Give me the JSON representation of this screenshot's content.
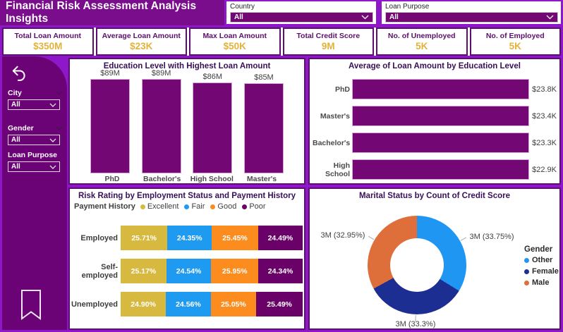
{
  "header": {
    "title": "Financial Risk Assessment Analysis Insights",
    "filters": [
      {
        "label": "Country",
        "value": "All"
      },
      {
        "label": "Loan Purpose",
        "value": "All"
      }
    ]
  },
  "kpis": [
    {
      "label": "Total Loan Amount",
      "value": "$350M"
    },
    {
      "label": "Average Loan Amount",
      "value": "$23K"
    },
    {
      "label": "Max Loan Amount",
      "value": "$50K"
    },
    {
      "label": "Total Credit Score",
      "value": "9M"
    },
    {
      "label": "No. of Unemployed",
      "value": "5K"
    },
    {
      "label": "No. of Employed",
      "value": "5K"
    }
  ],
  "sidebar": {
    "icons": [
      "back-arrow-icon",
      "bookmark-icon"
    ],
    "filters": [
      {
        "label": "City",
        "value": "All",
        "has_header_chevron": true
      },
      {
        "label": "Gender",
        "value": "All",
        "has_header_chevron": true
      },
      {
        "label": "Loan Purpose",
        "value": "All",
        "has_header_chevron": false
      }
    ]
  },
  "colors": {
    "background_violet": "#8D17C9",
    "titlebar_purple": "#7A0D8C",
    "sidebar_purple": "#6B0377",
    "accent_bar_purple": "#730874",
    "kpi_value_gold": "#E3B23A"
  },
  "chart_data": [
    {
      "type": "bar",
      "title": "Education Level with Highest Loan Amount",
      "categories": [
        "PhD",
        "Bachelor's",
        "High School",
        "Master's"
      ],
      "values": [
        89,
        89,
        86,
        85
      ],
      "labels": [
        "$89M",
        "$89M",
        "$86M",
        "$85M"
      ],
      "unit": "$M",
      "bar_color": "#730874",
      "ylim": [
        0,
        89
      ]
    },
    {
      "type": "bar-horizontal",
      "title": "Average of Loan Amount by Education Level",
      "categories": [
        "PhD",
        "Master's",
        "Bachelor's",
        "High School"
      ],
      "values": [
        23.8,
        23.4,
        23.3,
        22.9
      ],
      "labels": [
        "$23.8K",
        "$23.4K",
        "$23.3K",
        "$22.9K"
      ],
      "unit": "$K",
      "bar_color": "#730874",
      "xlim": [
        0,
        23.8
      ]
    },
    {
      "type": "bar-stacked",
      "title": "Risk Rating by Employment Status and Payment History",
      "legend_title": "Payment History",
      "legend_position": "top",
      "categories": [
        "Employed",
        "Self-employed",
        "Unemployed"
      ],
      "series": [
        {
          "name": "Excellent",
          "color": "#D8B93F",
          "values": [
            25.71,
            25.17,
            24.9
          ]
        },
        {
          "name": "Fair",
          "color": "#1E9BF0",
          "values": [
            24.35,
            24.54,
            24.56
          ]
        },
        {
          "name": "Good",
          "color": "#FC8C1E",
          "values": [
            25.45,
            25.95,
            25.05
          ]
        },
        {
          "name": "Poor",
          "color": "#690168",
          "values": [
            24.49,
            24.34,
            25.49
          ]
        }
      ],
      "value_suffix": "%"
    },
    {
      "type": "pie",
      "title": "Marital Status by Count of Credit Score",
      "legend_title": "Gender",
      "legend_position": "right",
      "slices": [
        {
          "name": "Other",
          "color": "#2096F3",
          "value_label": "3M",
          "pct": 33.75,
          "label": "3M (33.75%)"
        },
        {
          "name": "Female",
          "color": "#1C2E92",
          "value_label": "3M",
          "pct": 33.3,
          "label": "3M (33.3%)"
        },
        {
          "name": "Male",
          "color": "#DE6F3A",
          "value_label": "3M",
          "pct": 32.95,
          "label": "3M (32.95%)"
        }
      ],
      "donut_hole": true
    }
  ]
}
